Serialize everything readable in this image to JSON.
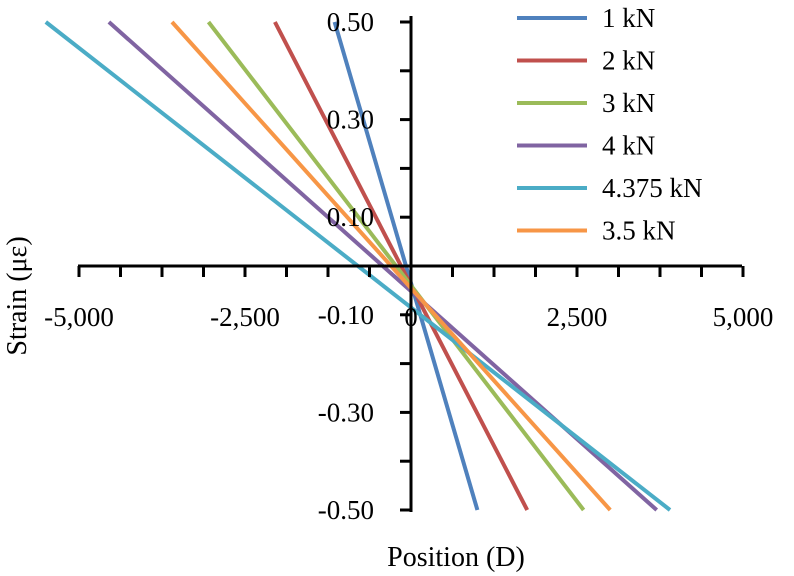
{
  "chart_data": {
    "type": "line",
    "title": "",
    "xlabel": "Position (D)",
    "ylabel": "Strain (με)",
    "xlim": [
      -5000,
      5000
    ],
    "ylim": [
      -0.5,
      0.5
    ],
    "x_ticks": [
      -5000,
      -4375,
      -3750,
      -3125,
      -2500,
      -1875,
      -1250,
      -625,
      0,
      625,
      1250,
      1875,
      2500,
      3125,
      3750,
      4375,
      5000
    ],
    "x_tick_labels": [
      {
        "value": -5000,
        "label": "-5,000"
      },
      {
        "value": -2500,
        "label": "-2,500"
      },
      {
        "value": 0,
        "label": "0"
      },
      {
        "value": 2500,
        "label": "2,500"
      },
      {
        "value": 5000,
        "label": "5,000"
      }
    ],
    "y_ticks": [
      -0.5,
      -0.4,
      -0.3,
      -0.2,
      -0.1,
      0,
      0.1,
      0.2,
      0.3,
      0.4,
      0.5
    ],
    "y_tick_labels": [
      {
        "value": 0.5,
        "label": "0.50"
      },
      {
        "value": 0.3,
        "label": "0.30"
      },
      {
        "value": 0.1,
        "label": "0.10"
      },
      {
        "value": -0.1,
        "label": "-0.10"
      },
      {
        "value": -0.3,
        "label": "-0.30"
      },
      {
        "value": -0.5,
        "label": "-0.50"
      }
    ],
    "grid": false,
    "legend_position": "top-right",
    "series": [
      {
        "name": "1 kN",
        "color": "#4F81BD",
        "x": [
          -1150,
          1000
        ],
        "y": [
          0.5,
          -0.5
        ]
      },
      {
        "name": "2 kN",
        "color": "#C0504D",
        "x": [
          -2050,
          1750
        ],
        "y": [
          0.5,
          -0.5
        ]
      },
      {
        "name": "3 kN",
        "color": "#9BBB59",
        "x": [
          -3050,
          2600
        ],
        "y": [
          0.5,
          -0.5
        ]
      },
      {
        "name": "4 kN",
        "color": "#8064A2",
        "x": [
          -4550,
          3700
        ],
        "y": [
          0.5,
          -0.5
        ]
      },
      {
        "name": "4.375 kN",
        "color": "#4BACC6",
        "x": [
          -5500,
          3900
        ],
        "y": [
          0.5,
          -0.5
        ]
      },
      {
        "name": "3.5 kN",
        "color": "#F79646",
        "x": [
          -3600,
          3000
        ],
        "y": [
          0.5,
          -0.5
        ]
      }
    ]
  }
}
